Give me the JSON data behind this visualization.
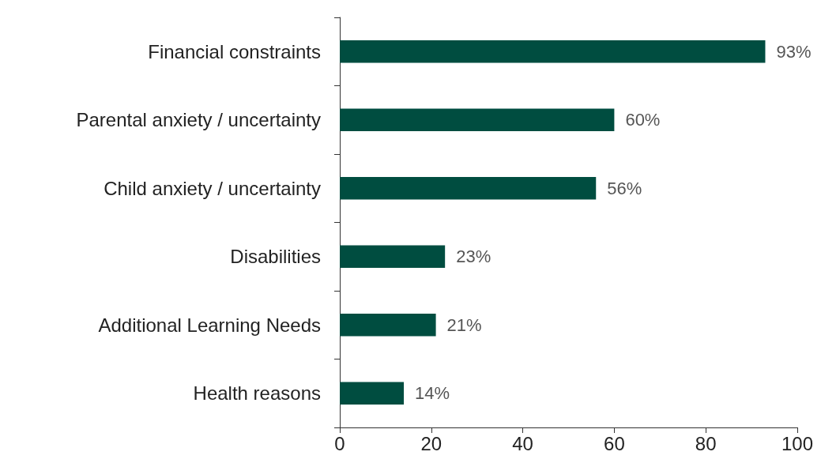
{
  "chart_data": {
    "type": "bar",
    "orientation": "horizontal",
    "categories": [
      "Financial constraints",
      "Parental anxiety / uncertainty",
      "Child anxiety / uncertainty",
      "Disabilities",
      "Additional Learning Needs",
      "Health reasons"
    ],
    "values": [
      93,
      60,
      56,
      23,
      21,
      14
    ],
    "value_labels": [
      "93%",
      "60%",
      "56%",
      "23%",
      "21%",
      "14%"
    ],
    "color": "#004d40",
    "xlim": [
      0,
      100
    ],
    "xticks": [
      0,
      20,
      40,
      60,
      80,
      100
    ],
    "grid": false
  }
}
